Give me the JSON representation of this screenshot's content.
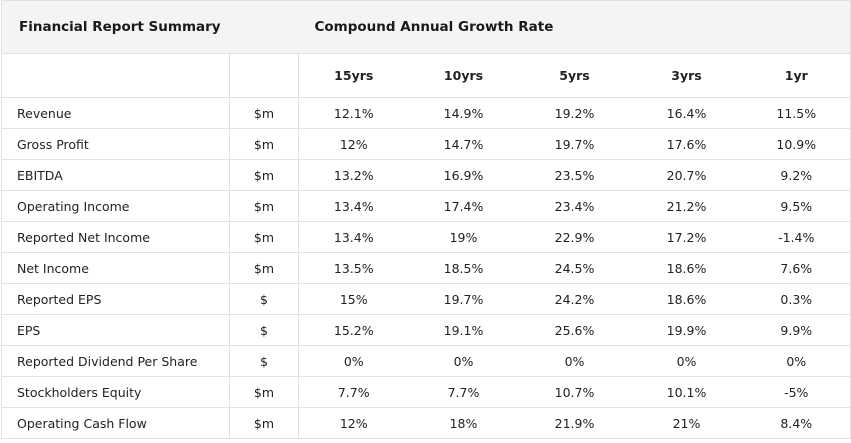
{
  "table": {
    "title": "Financial Report Summary",
    "group_header": "Compound Annual Growth Rate",
    "columns": [
      "15yrs",
      "10yrs",
      "5yrs",
      "3yrs",
      "1yr"
    ],
    "rows": [
      [
        "Revenue",
        "$m",
        "12.1%",
        "14.9%",
        "19.2%",
        "16.4%",
        "11.5%"
      ],
      [
        "Gross Profit",
        "$m",
        "12%",
        "14.7%",
        "19.7%",
        "17.6%",
        "10.9%"
      ],
      [
        "EBITDA",
        "$m",
        "13.2%",
        "16.9%",
        "23.5%",
        "20.7%",
        "9.2%"
      ],
      [
        "Operating Income",
        "$m",
        "13.4%",
        "17.4%",
        "23.4%",
        "21.2%",
        "9.5%"
      ],
      [
        "Reported Net Income",
        "$m",
        "13.4%",
        "19%",
        "22.9%",
        "17.2%",
        "-1.4%"
      ],
      [
        "Net Income",
        "$m",
        "13.5%",
        "18.5%",
        "24.5%",
        "18.6%",
        "7.6%"
      ],
      [
        "Reported EPS",
        "$",
        "15%",
        "19.7%",
        "24.2%",
        "18.6%",
        "0.3%"
      ],
      [
        "EPS",
        "$",
        "15.2%",
        "19.1%",
        "25.6%",
        "19.9%",
        "9.9%"
      ],
      [
        "Reported Dividend Per Share",
        "$",
        "0%",
        "0%",
        "0%",
        "0%",
        "0%"
      ],
      [
        "Stockholders Equity",
        "$m",
        "7.7%",
        "7.7%",
        "10.7%",
        "10.1%",
        "-5%"
      ],
      [
        "Operating Cash Flow",
        "$m",
        "12%",
        "18%",
        "21.9%",
        "21%",
        "8.4%"
      ]
    ]
  }
}
